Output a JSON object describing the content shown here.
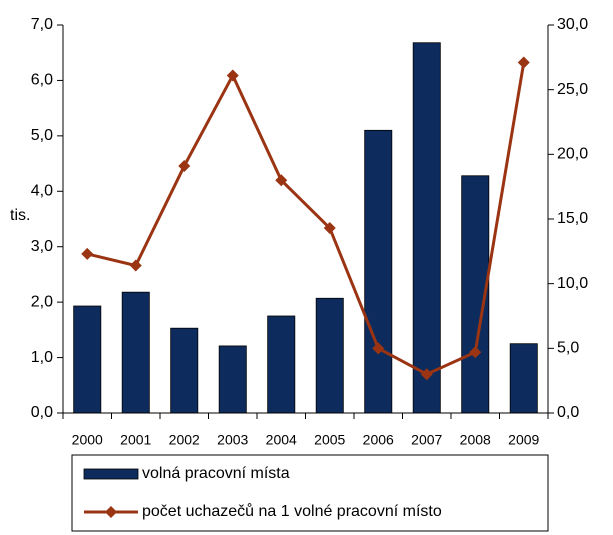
{
  "chart_data": {
    "type": "bar_line",
    "categories": [
      "2000",
      "2001",
      "2002",
      "2003",
      "2004",
      "2005",
      "2006",
      "2007",
      "2008",
      "2009"
    ],
    "y_label": "tis.",
    "series": [
      {
        "name": "volná pracovní místa",
        "type": "bar",
        "color": "#0d2b5c",
        "axis": "y",
        "values": [
          1.93,
          2.18,
          1.53,
          1.21,
          1.75,
          2.07,
          5.1,
          6.68,
          4.28,
          1.25
        ]
      },
      {
        "name": "počet uchazečů na 1 volné pracovní místo",
        "type": "line",
        "color": "#9a3412",
        "axis": "y2",
        "values": [
          12.3,
          11.4,
          19.1,
          26.1,
          18.0,
          14.3,
          5.0,
          3.0,
          4.7,
          27.1
        ]
      }
    ],
    "ylim": [
      0,
      7
    ],
    "yticks": [
      {
        "value": 0,
        "label": "0,0"
      },
      {
        "value": 1,
        "label": "1,0"
      },
      {
        "value": 2,
        "label": "2,0"
      },
      {
        "value": 3,
        "label": "3,0"
      },
      {
        "value": 4,
        "label": "4,0"
      },
      {
        "value": 5,
        "label": "5,0"
      },
      {
        "value": 6,
        "label": "6,0"
      },
      {
        "value": 7,
        "label": "7,0"
      }
    ],
    "y2lim": [
      0,
      30
    ],
    "y2ticks": [
      {
        "value": 0,
        "label": "0,0"
      },
      {
        "value": 5,
        "label": "5,0"
      },
      {
        "value": 10,
        "label": "10,0"
      },
      {
        "value": 15,
        "label": "15,0"
      },
      {
        "value": 20,
        "label": "20,0"
      },
      {
        "value": 25,
        "label": "25,0"
      },
      {
        "value": 30,
        "label": "30,0"
      }
    ],
    "grid": false,
    "legend": "bottom"
  }
}
